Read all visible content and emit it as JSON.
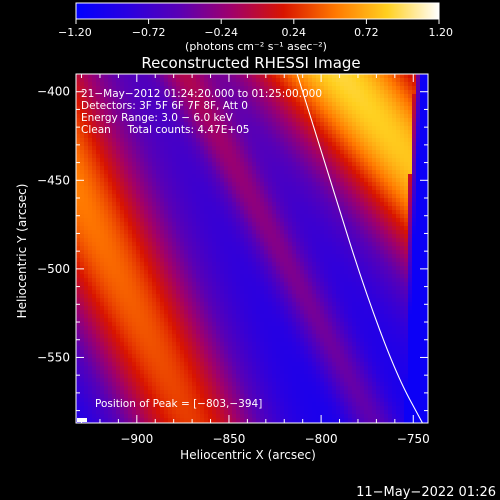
{
  "chart_data": {
    "type": "heatmap",
    "title": "Reconstructed RHESSI Image",
    "xlabel": "Heliocentric X (arcsec)",
    "ylabel": "Heliocentric Y (arcsec)",
    "xlim": [
      -933,
      -742
    ],
    "ylim": [
      -587,
      -390
    ],
    "x_ticks": [
      -900,
      -850,
      -800,
      -750
    ],
    "x_tick_labels": [
      "−900",
      "−850",
      "−800",
      "−750"
    ],
    "y_ticks": [
      -400,
      -450,
      -500,
      -550
    ],
    "y_tick_labels": [
      "−400",
      "−450",
      "−500",
      "−550"
    ],
    "colorbar": {
      "range": [
        -1.2,
        1.2
      ],
      "ticks": [
        -1.2,
        -0.72,
        -0.24,
        0.24,
        0.72,
        1.2
      ],
      "tick_labels": [
        "−1.20",
        "−0.72",
        "−0.24",
        "0.24",
        "0.72",
        "1.20"
      ],
      "unit_label": "(photons cm⁻² s⁻¹ asec⁻²)",
      "colormap": [
        "#0000ff",
        "#2a00e0",
        "#5a00b4",
        "#a0006a",
        "#d81400",
        "#ff7800",
        "#ffd020",
        "#ffffff"
      ]
    },
    "annotations": [
      "21−May−2012 01:24:20.000 to 01:25:00.000",
      "Detectors: 3F 5F 6F 7F 8F, Att 0",
      "Energy Range: 3.0 − 6.0 keV",
      "Clean     Total counts: 4.47E+05"
    ],
    "peak_text": "Position of Peak = [−803,−394]",
    "peak_position": [
      -803,
      -394
    ],
    "limb_curve": [
      [
        -813,
        -390
      ],
      [
        -795,
        -450
      ],
      [
        -777,
        -510
      ],
      [
        -759,
        -560
      ],
      [
        -745,
        -587
      ]
    ],
    "intensity_model": {
      "ridges": [
        {
          "amp": 1.35,
          "x0": -965,
          "slope": 2.1,
          "width": 28
        },
        {
          "amp": 1.6,
          "x0": -790,
          "slope": 1.3,
          "width": 34
        },
        {
          "amp": 0.55,
          "x0": -875,
          "slope": 1.9,
          "width": 10
        }
      ],
      "background": -1.05,
      "sharp_edge_x0": -745
    }
  },
  "timestamp": "11−May−2022 01:26"
}
